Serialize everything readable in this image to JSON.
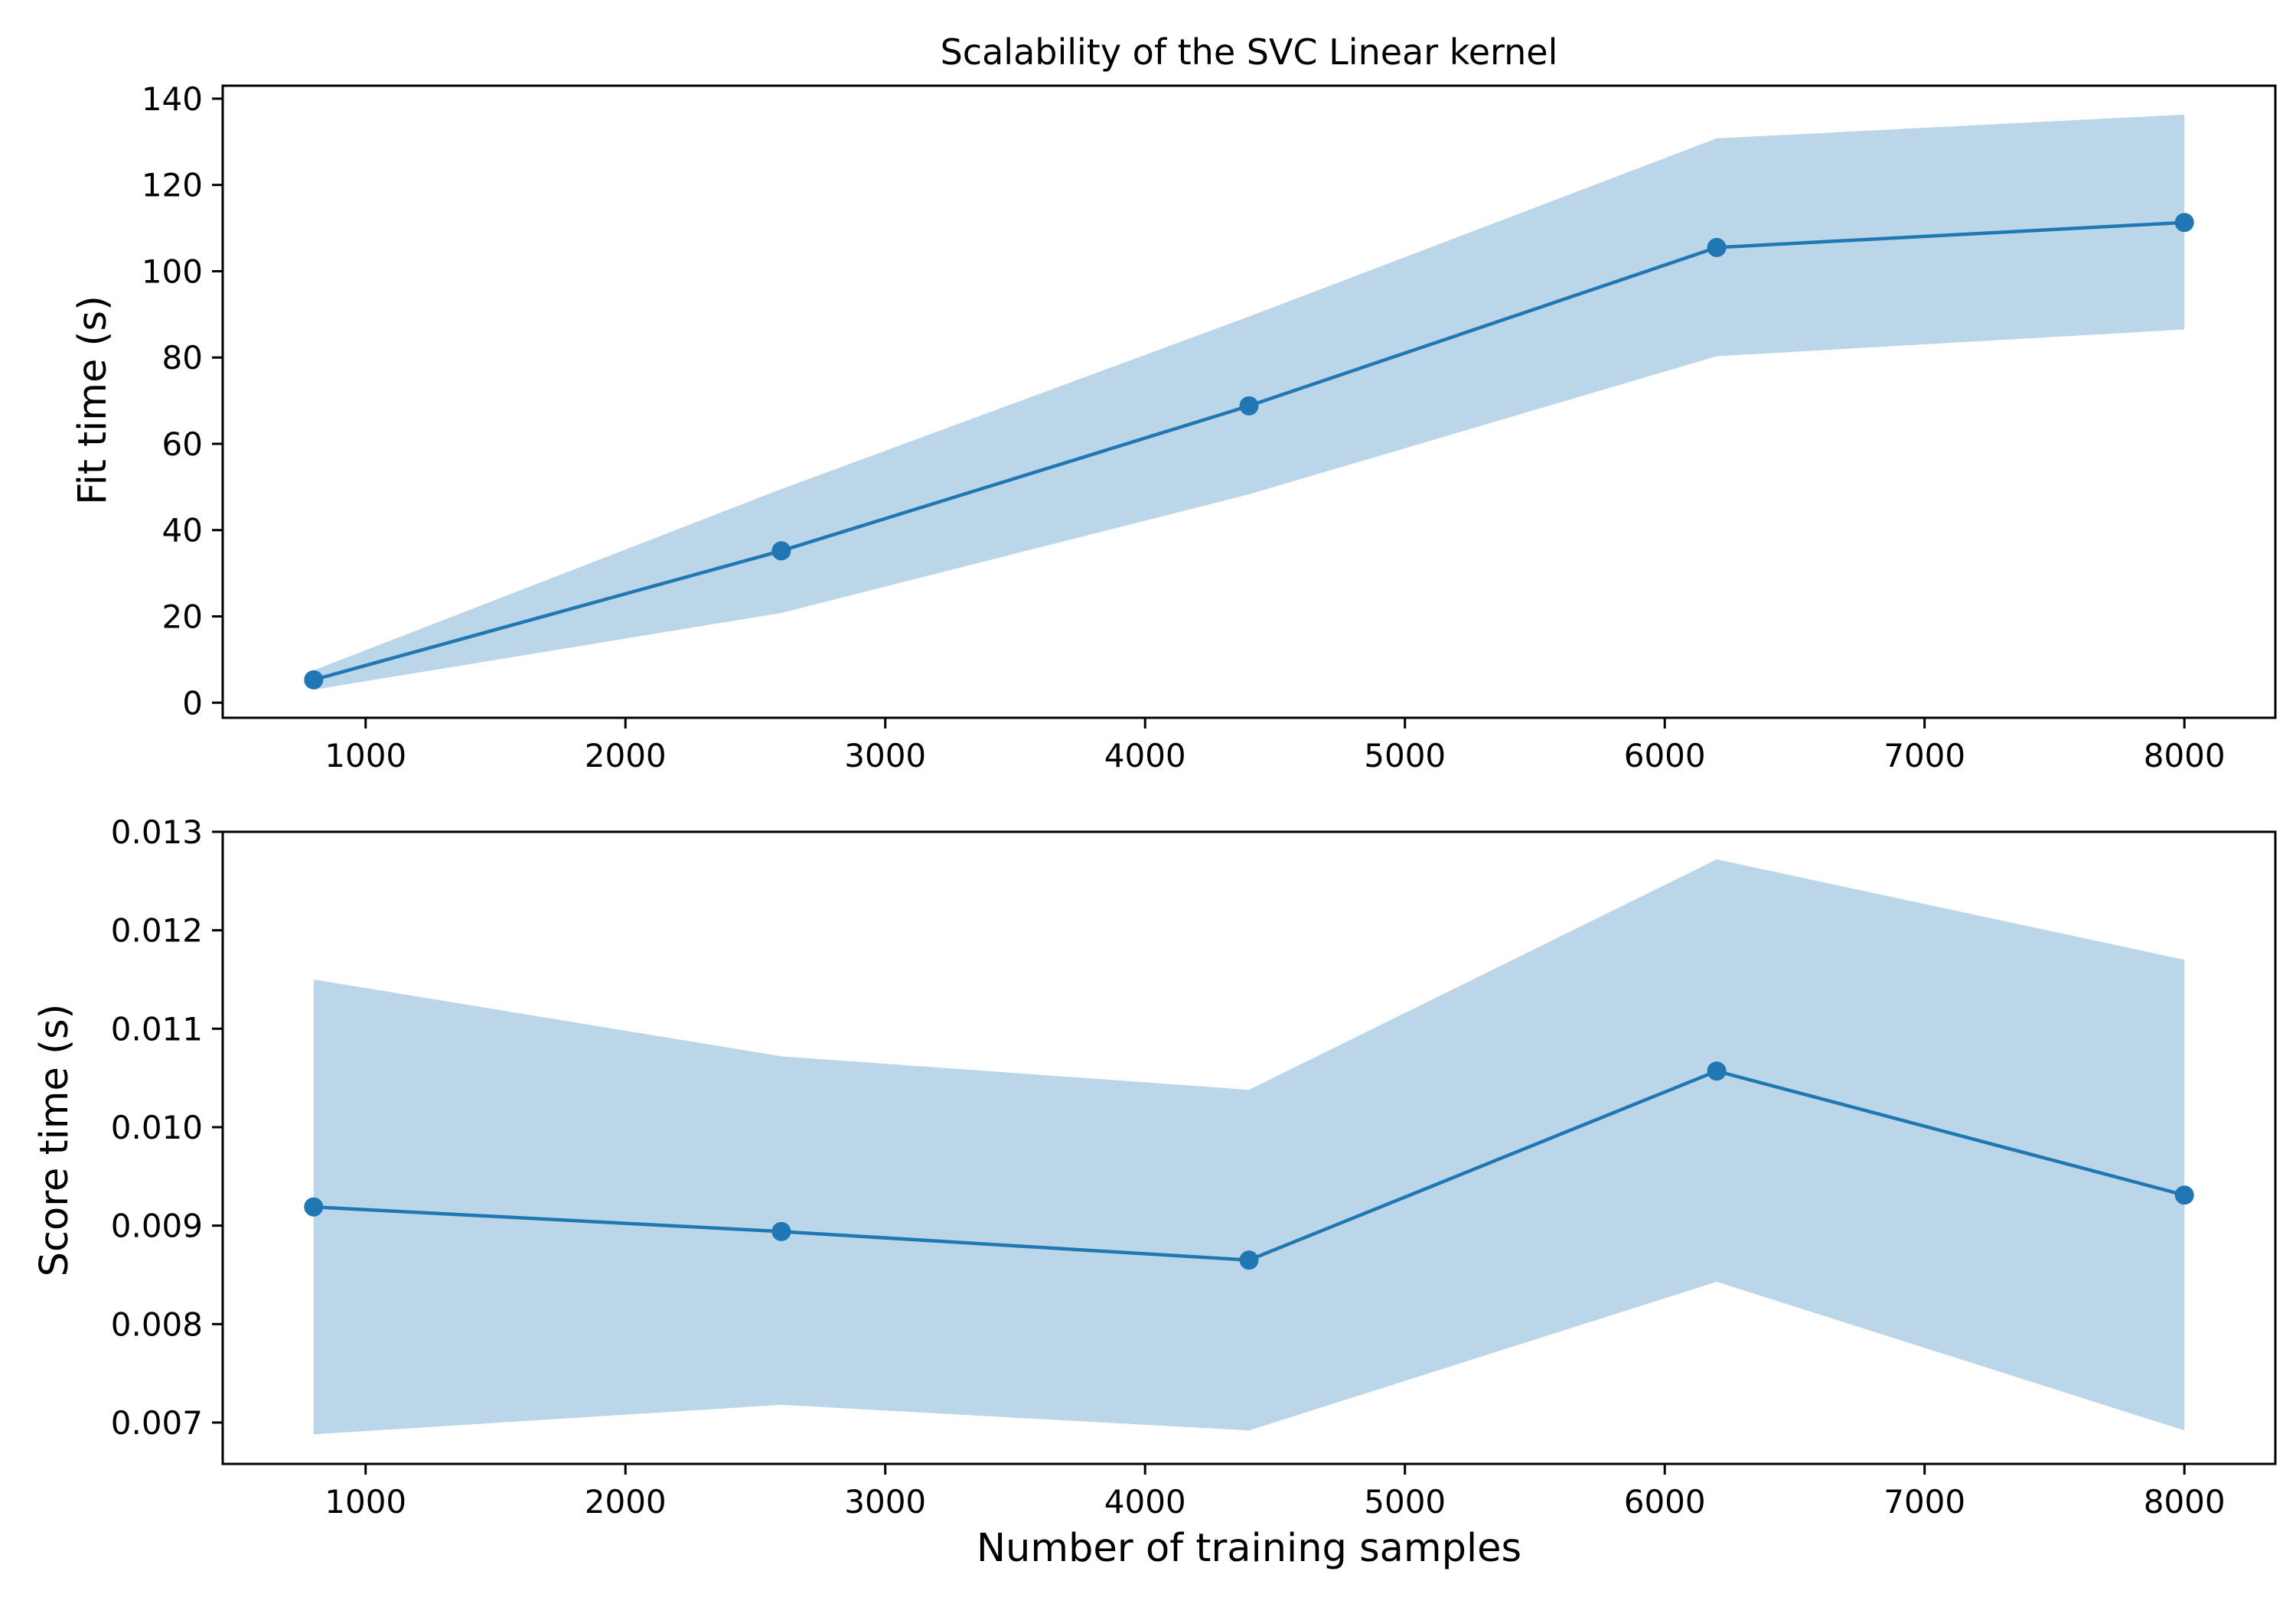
{
  "title": "Scalability of the SVC Linear kernel",
  "colors": {
    "line": "#1f77b4",
    "band": "#1f77b4",
    "band_opacity": 0.3,
    "axes": "#000000",
    "background": "#ffffff"
  },
  "chart_data": [
    {
      "type": "line",
      "title": "Scalability of the SVC Linear kernel",
      "xlabel": "",
      "ylabel": "Fit time (s)",
      "x": [
        800,
        2600,
        4400,
        6200,
        8000
      ],
      "series": [
        {
          "values": [
            5.3,
            35.2,
            68.8,
            105.5,
            111.3
          ],
          "band_upper": [
            7.5,
            49.5,
            89.5,
            130.8,
            136.3
          ],
          "band_lower": [
            3.0,
            20.8,
            48.3,
            80.3,
            86.5
          ],
          "marker": "circle"
        }
      ],
      "xlim": [
        450,
        8350
      ],
      "ylim": [
        -3.5,
        143
      ],
      "xticks": [
        1000,
        2000,
        3000,
        4000,
        5000,
        6000,
        7000,
        8000
      ],
      "xtick_labels": [
        "1000",
        "2000",
        "3000",
        "4000",
        "5000",
        "6000",
        "7000",
        "8000"
      ],
      "yticks": [
        0,
        20,
        40,
        60,
        80,
        100,
        120,
        140
      ],
      "ytick_labels": [
        "0",
        "20",
        "40",
        "60",
        "80",
        "100",
        "120",
        "140"
      ],
      "grid": false
    },
    {
      "type": "line",
      "title": "",
      "xlabel": "Number of training samples",
      "ylabel": "Score time (s)",
      "x": [
        800,
        2600,
        4400,
        6200,
        8000
      ],
      "series": [
        {
          "values": [
            0.00919,
            0.00894,
            0.00865,
            0.01057,
            0.00931
          ],
          "band_upper": [
            0.0115,
            0.01072,
            0.01038,
            0.01272,
            0.0117
          ],
          "band_lower": [
            0.00688,
            0.00718,
            0.00692,
            0.00843,
            0.00692
          ],
          "marker": "circle"
        }
      ],
      "xlim": [
        450,
        8350
      ],
      "ylim": [
        0.00658,
        0.013
      ],
      "xticks": [
        1000,
        2000,
        3000,
        4000,
        5000,
        6000,
        7000,
        8000
      ],
      "xtick_labels": [
        "1000",
        "2000",
        "3000",
        "4000",
        "5000",
        "6000",
        "7000",
        "8000"
      ],
      "yticks": [
        0.007,
        0.008,
        0.009,
        0.01,
        0.011,
        0.012,
        0.013
      ],
      "ytick_labels": [
        "0.007",
        "0.008",
        "0.009",
        "0.010",
        "0.011",
        "0.012",
        "0.013"
      ],
      "grid": false
    }
  ]
}
